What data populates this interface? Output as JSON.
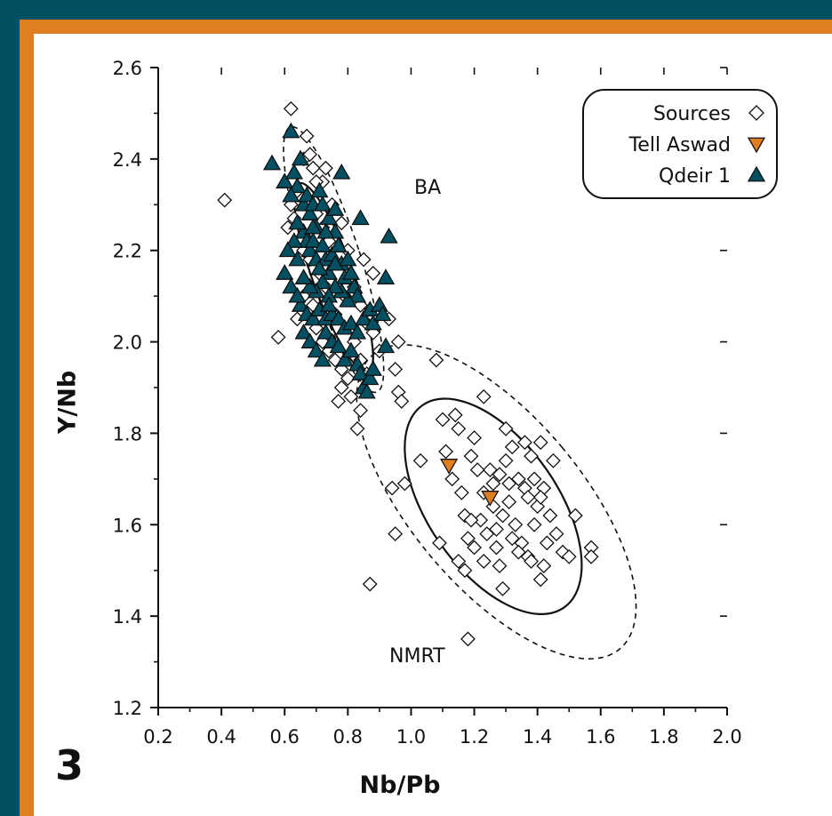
{
  "panel": {
    "number": "3",
    "colors": {
      "outer_frame": "#045063",
      "accent_frame": "#df7f22",
      "background": "#ffffff"
    }
  },
  "chart_data": {
    "type": "scatter",
    "xlabel": "Nb/Pb",
    "ylabel": "Y/Nb",
    "xlim": [
      0.2,
      2.0
    ],
    "ylim": [
      1.2,
      2.6
    ],
    "x_ticks": [
      "0.2",
      "0.4",
      "0.6",
      "0.8",
      "1.0",
      "1.2",
      "1.4",
      "1.6",
      "1.8",
      "2.0"
    ],
    "y_ticks": [
      "1.2",
      "1.4",
      "1.6",
      "1.8",
      "2.0",
      "2.2",
      "2.4",
      "2.6"
    ],
    "grid": false,
    "legend_position": "top-right",
    "region_labels": [
      "BA",
      "NMRT"
    ],
    "series": [
      {
        "name": "Sources",
        "marker": "diamond-open",
        "color": "#ffffff",
        "points": [
          [
            0.62,
            2.51
          ],
          [
            0.67,
            2.45
          ],
          [
            0.41,
            2.31
          ],
          [
            0.58,
            2.01
          ],
          [
            0.66,
            2.4
          ],
          [
            0.68,
            2.41
          ],
          [
            0.69,
            2.38
          ],
          [
            0.72,
            2.35
          ],
          [
            0.64,
            2.33
          ],
          [
            0.62,
            2.3
          ],
          [
            0.63,
            2.27
          ],
          [
            0.61,
            2.25
          ],
          [
            0.65,
            2.22
          ],
          [
            0.66,
            2.2
          ],
          [
            0.7,
            2.28
          ],
          [
            0.72,
            2.25
          ],
          [
            0.74,
            2.22
          ],
          [
            0.68,
            2.18
          ],
          [
            0.71,
            2.15
          ],
          [
            0.73,
            2.12
          ],
          [
            0.66,
            2.1
          ],
          [
            0.69,
            2.08
          ],
          [
            0.64,
            2.05
          ],
          [
            0.7,
            2.03
          ],
          [
            0.72,
            2.0
          ],
          [
            0.74,
            1.98
          ],
          [
            0.76,
            1.96
          ],
          [
            0.78,
            1.94
          ],
          [
            0.8,
            1.92
          ],
          [
            0.76,
            2.06
          ],
          [
            0.79,
            2.1
          ],
          [
            0.82,
            2.12
          ],
          [
            0.84,
            2.08
          ],
          [
            0.86,
            2.04
          ],
          [
            0.82,
            2.0
          ],
          [
            0.84,
            1.96
          ],
          [
            0.78,
            1.9
          ],
          [
            0.81,
            1.88
          ],
          [
            0.77,
            1.87
          ],
          [
            0.84,
            1.85
          ],
          [
            0.83,
            1.81
          ],
          [
            0.88,
            2.02
          ],
          [
            0.9,
            1.98
          ],
          [
            0.86,
            1.93
          ],
          [
            0.75,
            2.3
          ],
          [
            0.78,
            2.26
          ],
          [
            0.8,
            2.2
          ],
          [
            0.85,
            2.18
          ],
          [
            0.88,
            2.15
          ],
          [
            0.7,
            2.35
          ],
          [
            0.73,
            2.38
          ],
          [
            0.96,
            2.0
          ],
          [
            0.95,
            1.94
          ],
          [
            0.96,
            1.89
          ],
          [
            0.97,
            1.87
          ],
          [
            0.93,
            2.05
          ],
          [
            1.03,
            1.74
          ],
          [
            1.08,
            1.96
          ],
          [
            1.1,
            1.83
          ],
          [
            1.14,
            1.84
          ],
          [
            1.15,
            1.81
          ],
          [
            1.11,
            1.76
          ],
          [
            1.19,
            1.75
          ],
          [
            1.2,
            1.79
          ],
          [
            1.23,
            1.88
          ],
          [
            1.3,
            1.81
          ],
          [
            1.23,
            1.67
          ],
          [
            1.25,
            1.72
          ],
          [
            1.26,
            1.69
          ],
          [
            1.28,
            1.71
          ],
          [
            1.3,
            1.74
          ],
          [
            1.32,
            1.77
          ],
          [
            1.34,
            1.7
          ],
          [
            1.36,
            1.78
          ],
          [
            1.38,
            1.75
          ],
          [
            1.41,
            1.78
          ],
          [
            1.45,
            1.74
          ],
          [
            1.16,
            1.67
          ],
          [
            1.17,
            1.62
          ],
          [
            1.18,
            1.57
          ],
          [
            1.2,
            1.55
          ],
          [
            1.22,
            1.61
          ],
          [
            1.27,
            1.59
          ],
          [
            1.29,
            1.62
          ],
          [
            1.31,
            1.65
          ],
          [
            1.33,
            1.6
          ],
          [
            1.35,
            1.56
          ],
          [
            1.37,
            1.53
          ],
          [
            1.39,
            1.6
          ],
          [
            1.4,
            1.64
          ],
          [
            1.42,
            1.68
          ],
          [
            1.44,
            1.62
          ],
          [
            1.46,
            1.58
          ],
          [
            1.48,
            1.54
          ],
          [
            1.5,
            1.53
          ],
          [
            1.52,
            1.62
          ],
          [
            1.57,
            1.55
          ],
          [
            1.57,
            1.53
          ],
          [
            1.15,
            1.52
          ],
          [
            1.17,
            1.5
          ],
          [
            1.23,
            1.52
          ],
          [
            1.28,
            1.51
          ],
          [
            1.29,
            1.46
          ],
          [
            1.34,
            1.54
          ],
          [
            1.38,
            1.52
          ],
          [
            1.41,
            1.48
          ],
          [
            1.42,
            1.51
          ],
          [
            1.39,
            1.7
          ],
          [
            1.41,
            1.66
          ],
          [
            1.36,
            1.68
          ],
          [
            1.09,
            1.56
          ],
          [
            1.18,
            1.35
          ],
          [
            0.98,
            1.69
          ],
          [
            0.94,
            1.68
          ],
          [
            0.95,
            1.58
          ],
          [
            0.87,
            1.47
          ],
          [
            1.32,
            1.57
          ],
          [
            1.26,
            1.64
          ],
          [
            1.21,
            1.72
          ],
          [
            1.13,
            1.7
          ],
          [
            1.19,
            1.61
          ],
          [
            1.43,
            1.56
          ],
          [
            1.37,
            1.66
          ],
          [
            1.31,
            1.69
          ],
          [
            1.27,
            1.55
          ],
          [
            1.24,
            1.58
          ]
        ]
      },
      {
        "name": "Tell Aswad",
        "marker": "triangle-down",
        "color": "#df7f22",
        "points": [
          [
            1.12,
            1.73
          ],
          [
            1.25,
            1.66
          ]
        ]
      },
      {
        "name": "Qdeir 1",
        "marker": "triangle-up",
        "color": "#045063",
        "points": [
          [
            0.62,
            2.46
          ],
          [
            0.56,
            2.39
          ],
          [
            0.6,
            2.35
          ],
          [
            0.63,
            2.37
          ],
          [
            0.64,
            2.34
          ],
          [
            0.62,
            2.32
          ],
          [
            0.66,
            2.3
          ],
          [
            0.67,
            2.32
          ],
          [
            0.68,
            2.28
          ],
          [
            0.69,
            2.3
          ],
          [
            0.71,
            2.33
          ],
          [
            0.72,
            2.3
          ],
          [
            0.74,
            2.27
          ],
          [
            0.7,
            2.25
          ],
          [
            0.66,
            2.24
          ],
          [
            0.67,
            2.22
          ],
          [
            0.68,
            2.2
          ],
          [
            0.69,
            2.22
          ],
          [
            0.7,
            2.18
          ],
          [
            0.72,
            2.21
          ],
          [
            0.73,
            2.18
          ],
          [
            0.74,
            2.15
          ],
          [
            0.75,
            2.19
          ],
          [
            0.76,
            2.24
          ],
          [
            0.77,
            2.21
          ],
          [
            0.78,
            2.17
          ],
          [
            0.79,
            2.14
          ],
          [
            0.8,
            2.18
          ],
          [
            0.81,
            2.15
          ],
          [
            0.82,
            2.12
          ],
          [
            0.83,
            2.1
          ],
          [
            0.8,
            2.09
          ],
          [
            0.78,
            2.11
          ],
          [
            0.76,
            2.12
          ],
          [
            0.74,
            2.1
          ],
          [
            0.72,
            2.13
          ],
          [
            0.7,
            2.11
          ],
          [
            0.68,
            2.12
          ],
          [
            0.66,
            2.14
          ],
          [
            0.64,
            2.18
          ],
          [
            0.65,
            2.08
          ],
          [
            0.67,
            2.06
          ],
          [
            0.69,
            2.05
          ],
          [
            0.71,
            2.07
          ],
          [
            0.73,
            2.05
          ],
          [
            0.75,
            2.06
          ],
          [
            0.77,
            2.05
          ],
          [
            0.79,
            2.03
          ],
          [
            0.81,
            2.04
          ],
          [
            0.83,
            2.02
          ],
          [
            0.85,
            2.05
          ],
          [
            0.87,
            2.07
          ],
          [
            0.88,
            2.04
          ],
          [
            0.9,
            2.08
          ],
          [
            0.91,
            2.06
          ],
          [
            0.73,
            2.02
          ],
          [
            0.75,
            2.0
          ],
          [
            0.77,
            1.99
          ],
          [
            0.79,
            1.96
          ],
          [
            0.81,
            1.98
          ],
          [
            0.83,
            1.95
          ],
          [
            0.84,
            1.93
          ],
          [
            0.85,
            1.9
          ],
          [
            0.87,
            1.92
          ],
          [
            0.88,
            1.94
          ],
          [
            0.86,
            1.89
          ],
          [
            0.93,
            2.23
          ],
          [
            0.92,
            2.14
          ],
          [
            0.92,
            1.99
          ],
          [
            0.84,
            2.27
          ],
          [
            0.78,
            2.37
          ],
          [
            0.76,
            2.29
          ],
          [
            0.65,
            2.4
          ],
          [
            0.69,
            2.25
          ],
          [
            0.71,
            2.16
          ],
          [
            0.74,
            2.08
          ],
          [
            0.76,
            2.17
          ],
          [
            0.73,
            2.24
          ],
          [
            0.64,
            2.26
          ],
          [
            0.63,
            2.22
          ],
          [
            0.61,
            2.2
          ],
          [
            0.6,
            2.15
          ],
          [
            0.62,
            2.12
          ],
          [
            0.64,
            2.1
          ],
          [
            0.66,
            2.02
          ],
          [
            0.68,
            2.0
          ],
          [
            0.7,
            1.98
          ],
          [
            0.72,
            1.96
          ]
        ]
      }
    ]
  }
}
